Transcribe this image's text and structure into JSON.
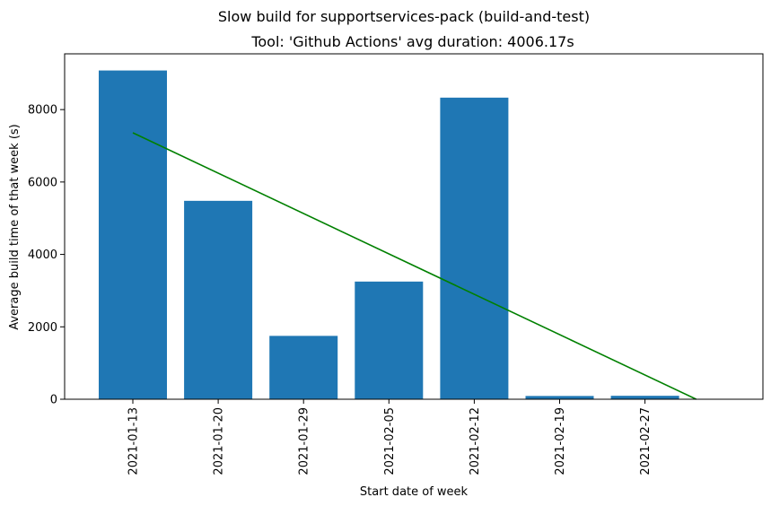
{
  "chart_data": {
    "type": "bar",
    "suptitle": "Slow build for supportservices-pack (build-and-test)",
    "title": "Tool: 'Github Actions' avg duration: 4006.17s",
    "xlabel": "Start date of week",
    "ylabel": "Average build time of that week (s)",
    "categories": [
      "2021-01-13",
      "2021-01-20",
      "2021-01-29",
      "2021-02-05",
      "2021-02-12",
      "2021-02-19",
      "2021-02-27"
    ],
    "values": [
      9080,
      5480,
      1750,
      3250,
      8330,
      90,
      95
    ],
    "bar_color": "#1f77b4",
    "trend_line": {
      "color": "#008000",
      "y_start": 7360,
      "y_end": 0,
      "x_end_index": 6.6
    },
    "ylim": [
      0,
      9540
    ],
    "yticks": [
      0,
      2000,
      4000,
      6000,
      8000
    ],
    "ytick_labels": [
      "0",
      "2000",
      "4000",
      "6000",
      "8000"
    ],
    "grid": false,
    "legend": "none"
  }
}
